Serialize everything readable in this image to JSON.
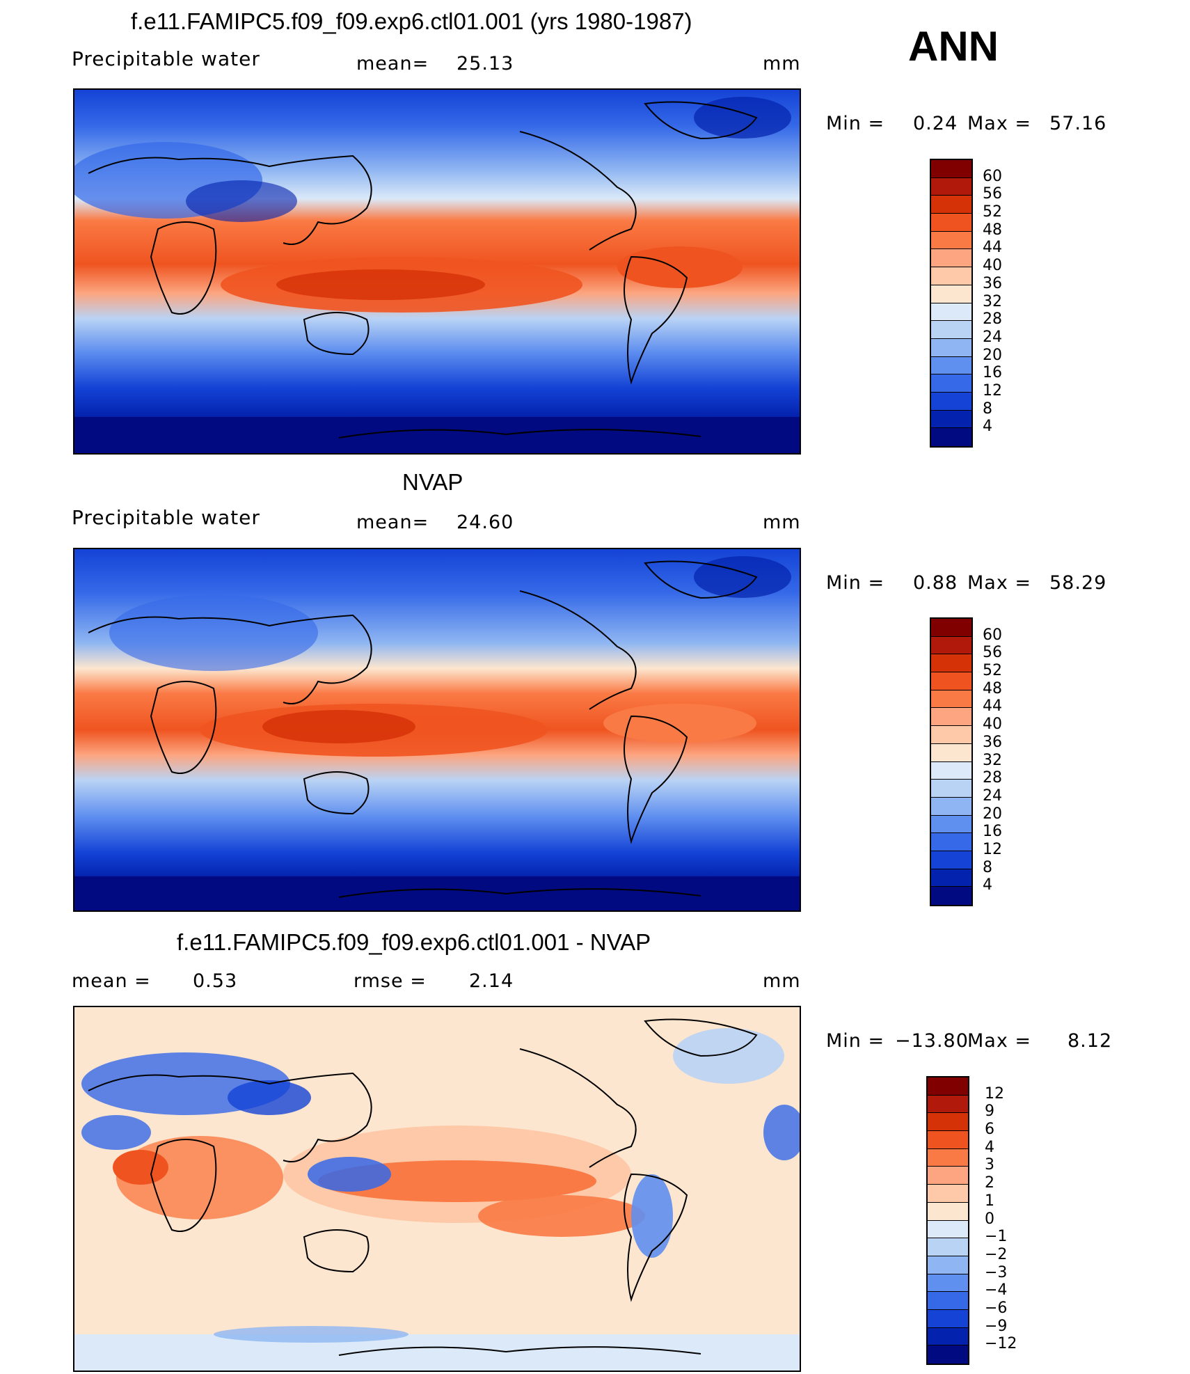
{
  "season": "ANN",
  "panels": [
    {
      "title": "f.e11.FAMIPC5.f09_f09.exp6.ctl01.001 (yrs 1980-1987)",
      "left_label": "Precipitable  water",
      "center_label": "mean=",
      "center_value": "25.13",
      "unit": "mm",
      "min_label": "Min  =",
      "min_value": "0.24",
      "max_label": "Max  =",
      "max_value": "57.16",
      "colorbar_labels": [
        "60",
        "56",
        "52",
        "48",
        "44",
        "40",
        "36",
        "32",
        "28",
        "24",
        "20",
        "16",
        "12",
        "8",
        "4"
      ]
    },
    {
      "title": "NVAP",
      "left_label": "Precipitable  water",
      "center_label": "mean=",
      "center_value": "24.60",
      "unit": "mm",
      "min_label": "Min  =",
      "min_value": "0.88",
      "max_label": "Max  =",
      "max_value": "58.29",
      "colorbar_labels": [
        "60",
        "56",
        "52",
        "48",
        "44",
        "40",
        "36",
        "32",
        "28",
        "24",
        "20",
        "16",
        "12",
        "8",
        "4"
      ]
    },
    {
      "title": "f.e11.FAMIPC5.f09_f09.exp6.ctl01.001 - NVAP",
      "left_label": "mean  =",
      "left_value": "0.53",
      "center_label": "rmse  =",
      "center_value": "2.14",
      "unit": "mm",
      "min_label": "Min  =",
      "min_value": "−13.80",
      "max_label": "Max  =",
      "max_value": "8.12",
      "colorbar_labels": [
        "12",
        "9",
        "6",
        "4",
        "3",
        "2",
        "1",
        "0",
        "−1",
        "−2",
        "−3",
        "−4",
        "−6",
        "−9",
        "−12"
      ]
    }
  ],
  "colors": {
    "abs_scale": [
      "#800000",
      "#b11a0a",
      "#d63208",
      "#ef5420",
      "#fa7a45",
      "#fca580",
      "#fdc9a8",
      "#fde6cf",
      "#dbe9f8",
      "#b9d3f5",
      "#8fb6f2",
      "#5f8fef",
      "#3569e8",
      "#1443d6",
      "#0322ad",
      "#010a80"
    ],
    "diff_scale": [
      "#800000",
      "#b11a0a",
      "#d63208",
      "#ef5420",
      "#fa7a45",
      "#fca580",
      "#fdc9a8",
      "#fde6cf",
      "#dbe9f8",
      "#b9d3f5",
      "#8fb6f2",
      "#5f8fef",
      "#3569e8",
      "#1443d6",
      "#0322ad",
      "#010a80"
    ]
  }
}
